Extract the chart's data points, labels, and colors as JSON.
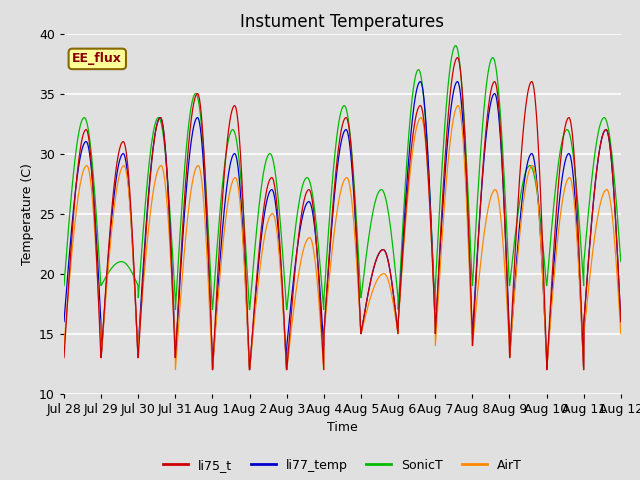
{
  "title": "Instument Temperatures",
  "xlabel": "Time",
  "ylabel": "Temperature (C)",
  "ylim": [
    10,
    40
  ],
  "background_color": "#e0e0e0",
  "plot_bg_color": "#e0e0e0",
  "grid_color": "#ffffff",
  "annotation_text": "EE_flux",
  "annotation_bg": "#ffff99",
  "annotation_border": "#886600",
  "series_colors": {
    "li75_t": "#cc0000",
    "li77_temp": "#0000cc",
    "SonicT": "#00bb00",
    "AirT": "#ff8800"
  },
  "xtick_labels": [
    "Jul 28",
    "Jul 29",
    "Jul 30",
    "Jul 31",
    "Aug 1",
    "Aug 2",
    "Aug 3",
    "Aug 4",
    "Aug 5",
    "Aug 6",
    "Aug 7",
    "Aug 8",
    "Aug 9",
    "Aug 10",
    "Aug 11",
    "Aug 12"
  ],
  "num_days": 15,
  "points_per_day": 144,
  "daily_data": {
    "red_min": [
      13,
      13,
      13,
      13,
      12,
      12,
      12,
      15,
      15,
      16,
      15,
      14,
      13,
      12,
      16
    ],
    "red_max": [
      32,
      31,
      33,
      35,
      34,
      28,
      27,
      33,
      22,
      34,
      38,
      36,
      36,
      33,
      32
    ],
    "blue_min": [
      16,
      13,
      14,
      13,
      12,
      12,
      14,
      15,
      15,
      16,
      15,
      15,
      13,
      12,
      16
    ],
    "blue_max": [
      31,
      30,
      33,
      33,
      30,
      27,
      26,
      32,
      22,
      36,
      36,
      35,
      30,
      30,
      32
    ],
    "green_min": [
      19,
      19,
      18,
      17,
      17,
      17,
      17,
      18,
      18,
      17,
      19,
      19,
      19,
      19,
      21
    ],
    "green_max": [
      33,
      21,
      33,
      35,
      32,
      30,
      28,
      34,
      27,
      37,
      39,
      38,
      29,
      32,
      33
    ],
    "orange_min": [
      14,
      13,
      14,
      12,
      12,
      12,
      12,
      15,
      15,
      16,
      14,
      14,
      13,
      12,
      15
    ],
    "orange_max": [
      29,
      29,
      29,
      29,
      28,
      25,
      23,
      28,
      20,
      33,
      34,
      27,
      29,
      28,
      27
    ]
  }
}
